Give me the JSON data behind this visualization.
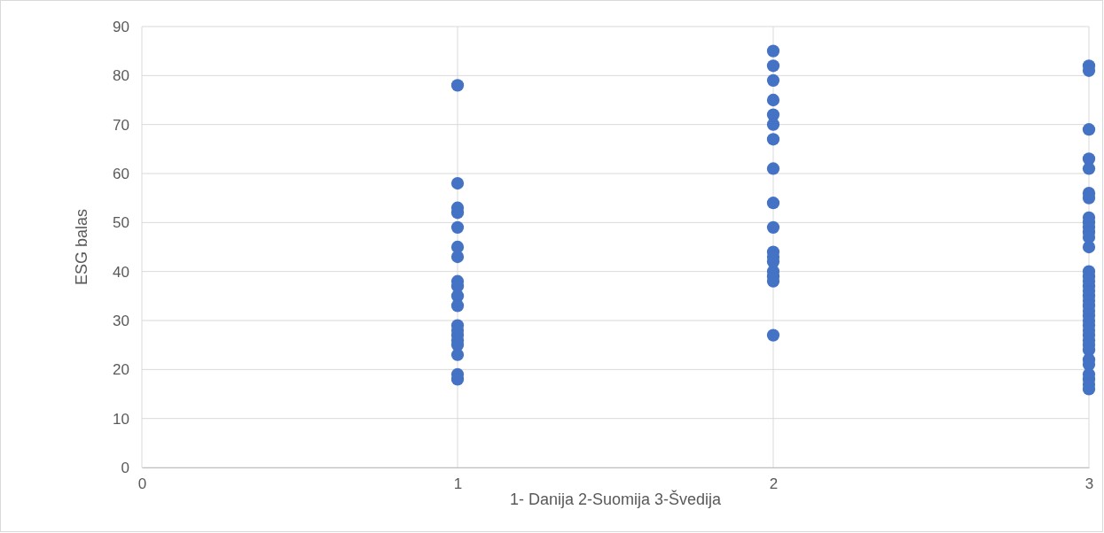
{
  "chart_data": {
    "type": "scatter",
    "xlabel": "1- Danija 2-Suomija 3-Švedija",
    "ylabel": "ESG balas",
    "x": [
      1,
      1,
      1,
      1,
      1,
      1,
      1,
      1,
      1,
      1,
      1,
      1,
      1,
      1,
      1,
      1,
      1,
      1,
      1,
      2,
      2,
      2,
      2,
      2,
      2,
      2,
      2,
      2,
      2,
      2,
      2,
      2,
      2,
      2,
      2,
      2,
      3,
      3,
      3,
      3,
      3,
      3,
      3,
      3,
      3,
      3,
      3,
      3,
      3,
      3,
      3,
      3,
      3,
      3,
      3,
      3,
      3,
      3,
      3,
      3,
      3,
      3,
      3,
      3,
      3,
      3,
      3,
      3,
      3,
      3,
      3,
      3
    ],
    "values": [
      78,
      58,
      53,
      52,
      49,
      45,
      43,
      38,
      37,
      35,
      33,
      29,
      28,
      27,
      26,
      25,
      23,
      19,
      18,
      85,
      82,
      79,
      75,
      72,
      70,
      67,
      61,
      54,
      49,
      44,
      43,
      42,
      40,
      39,
      38,
      27,
      82,
      81,
      69,
      63,
      61,
      56,
      55,
      51,
      50,
      49,
      48,
      47,
      45,
      40,
      39,
      38,
      37,
      36,
      35,
      34,
      33,
      32,
      31,
      30,
      29,
      28,
      27,
      26,
      25,
      24,
      22,
      21,
      19,
      18,
      17,
      16
    ],
    "color": "#4472c4",
    "marker": "circle",
    "grid": true,
    "xlim": [
      0,
      3
    ],
    "xticks": [
      0,
      1,
      2,
      3
    ],
    "ylim": [
      0,
      90
    ],
    "yticks": [
      0,
      10,
      20,
      30,
      40,
      50,
      60,
      70,
      80,
      90
    ]
  }
}
